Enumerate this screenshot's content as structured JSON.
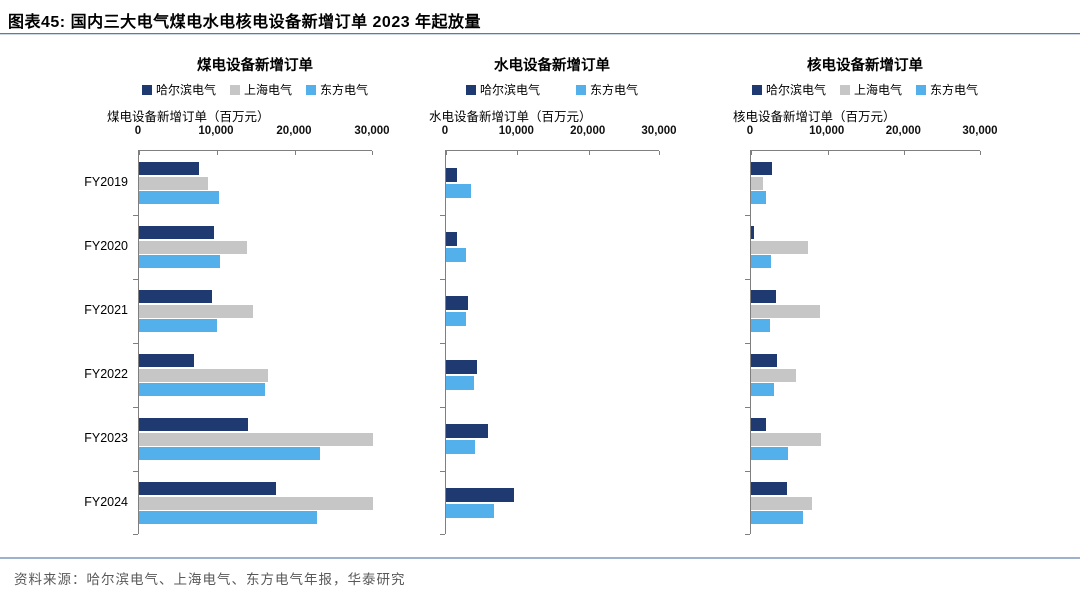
{
  "header": {
    "title": "图表45:  国内三大电气煤电水电核电设备新增订单 2023 年起放量"
  },
  "footer": {
    "source": "资料来源：哈尔滨电气、上海电气、东方电气年报，华泰研究"
  },
  "colors": {
    "harbin_navy": "#1f3a70",
    "shanghai_gray": "#c6c6c6",
    "dongfang_blue": "#54b0ea",
    "axis_gray": "#7f7f7f",
    "header_rule_blue": "#5b7bab",
    "footer_rule_blue": "#9fb2cd"
  },
  "chart_data": [
    {
      "type": "bar",
      "orientation": "horizontal",
      "title": "煤电设备新增订单",
      "axis_label": "煤电设备新增订单（百万元）",
      "xlim": [
        0,
        30000
      ],
      "xticks": [
        0,
        10000,
        20000,
        30000
      ],
      "tick_labels": [
        "0",
        "10,000",
        "20,000",
        "30,000"
      ],
      "categories": [
        "FY2019",
        "FY2020",
        "FY2021",
        "FY2022",
        "FY2023",
        "FY2024"
      ],
      "show_category_labels": true,
      "legend_position": "top",
      "series": [
        {
          "name": "哈尔滨电气",
          "color": "#1f3a70",
          "values": [
            7700,
            9600,
            9400,
            7000,
            14000,
            17500
          ]
        },
        {
          "name": "上海电气",
          "color": "#c6c6c6",
          "values": [
            8900,
            13900,
            14600,
            16500,
            30000,
            30000
          ]
        },
        {
          "name": "东方电气",
          "color": "#54b0ea",
          "values": [
            10200,
            10400,
            10000,
            16100,
            23200,
            22800
          ]
        }
      ]
    },
    {
      "type": "bar",
      "orientation": "horizontal",
      "title": "水电设备新增订单",
      "axis_label": "水电设备新增订单（百万元）",
      "xlim": [
        0,
        30000
      ],
      "xticks": [
        0,
        10000,
        20000,
        30000
      ],
      "tick_labels": [
        "0",
        "10,000",
        "20,000",
        "30,000"
      ],
      "categories": [
        "FY2019",
        "FY2020",
        "FY2021",
        "FY2022",
        "FY2023",
        "FY2024"
      ],
      "show_category_labels": false,
      "legend_position": "top",
      "series": [
        {
          "name": "哈尔滨电气",
          "color": "#1f3a70",
          "values": [
            1600,
            1500,
            3100,
            4300,
            5900,
            9600
          ]
        },
        {
          "name": "东方电气",
          "color": "#54b0ea",
          "values": [
            3500,
            2800,
            2800,
            3900,
            4000,
            6700
          ]
        }
      ]
    },
    {
      "type": "bar",
      "orientation": "horizontal",
      "title": "核电设备新增订单",
      "axis_label": "核电设备新增订单（百万元）",
      "xlim": [
        0,
        30000
      ],
      "xticks": [
        0,
        10000,
        20000,
        30000
      ],
      "tick_labels": [
        "0",
        "10,000",
        "20,000",
        "30,000"
      ],
      "categories": [
        "FY2019",
        "FY2020",
        "FY2021",
        "FY2022",
        "FY2023",
        "FY2024"
      ],
      "show_category_labels": false,
      "legend_position": "top",
      "series": [
        {
          "name": "哈尔滨电气",
          "color": "#1f3a70",
          "values": [
            2800,
            400,
            3200,
            3400,
            2000,
            4700
          ]
        },
        {
          "name": "上海电气",
          "color": "#c6c6c6",
          "values": [
            1500,
            7400,
            9000,
            5900,
            9100,
            7900
          ]
        },
        {
          "name": "东方电气",
          "color": "#54b0ea",
          "values": [
            1900,
            2600,
            2500,
            3000,
            4800,
            6800
          ]
        }
      ]
    }
  ]
}
